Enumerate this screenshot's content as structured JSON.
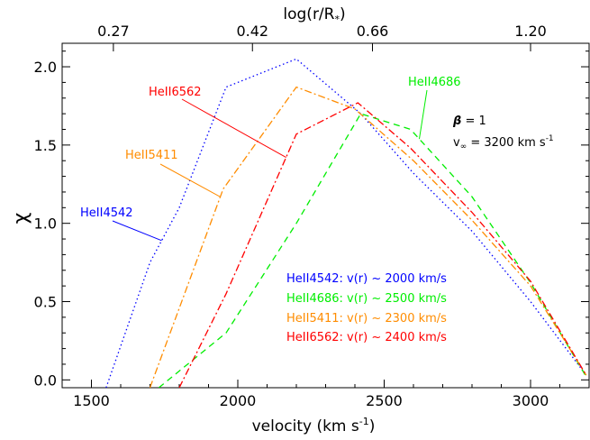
{
  "chart_data": {
    "type": "line",
    "title": "",
    "xlabel": "velocity (km s",
    "xlabel_sup": "-1",
    "xlabel_tail": ")",
    "ylabel": "χ",
    "top_axis_label": "log(r/R",
    "top_axis_label_sub": "*",
    "top_axis_label_tail": ")",
    "xlim": [
      1400,
      3200
    ],
    "ylim": [
      -0.05,
      2.15
    ],
    "x_ticks": [
      1500,
      2000,
      2500,
      3000
    ],
    "x_tick_labels": [
      "1500",
      "2000",
      "2500",
      "3000"
    ],
    "y_ticks": [
      0.0,
      0.5,
      1.0,
      1.5,
      2.0
    ],
    "y_tick_labels": [
      "0.0",
      "0.5",
      "1.0",
      "1.5",
      "2.0"
    ],
    "top_ticks": [
      {
        "velocity": 1575,
        "label": "0.27"
      },
      {
        "velocity": 2050,
        "label": "0.42"
      },
      {
        "velocity": 2460,
        "label": "0.66"
      },
      {
        "velocity": 3000,
        "label": "1.20"
      }
    ],
    "grid": false,
    "series": [
      {
        "name": "HeII4542",
        "color": "#0000ff",
        "dash": "dotted",
        "x": [
          1550,
          1700,
          1800,
          1960,
          2200,
          2420,
          2600,
          2800,
          3000,
          3190
        ],
        "y": [
          -0.05,
          0.75,
          1.1,
          1.87,
          2.05,
          1.7,
          1.32,
          0.95,
          0.5,
          0.03
        ]
      },
      {
        "name": "HeII4686",
        "color": "#00ee00",
        "dash": "dashed",
        "x": [
          1730,
          1960,
          2200,
          2420,
          2590,
          2800,
          3000,
          3190
        ],
        "y": [
          -0.05,
          0.3,
          1.0,
          1.7,
          1.6,
          1.17,
          0.62,
          0.02
        ]
      },
      {
        "name": "HeII5411",
        "color": "#ff8c00",
        "dash": "dashdot",
        "x": [
          1700,
          1950,
          2200,
          2400,
          2600,
          2800,
          3000,
          3190
        ],
        "y": [
          -0.05,
          1.22,
          1.87,
          1.73,
          1.4,
          1.02,
          0.6,
          0.03
        ]
      },
      {
        "name": "HeII6562",
        "color": "#ff0000",
        "dash": "dashdot",
        "x": [
          1800,
          1960,
          2200,
          2410,
          2590,
          2800,
          3000,
          3190
        ],
        "y": [
          -0.05,
          0.55,
          1.57,
          1.77,
          1.48,
          1.07,
          0.63,
          0.03
        ]
      }
    ],
    "series_labels": [
      {
        "text": "HeII6562",
        "color": "#ff0000"
      },
      {
        "text": "HeII5411",
        "color": "#ff8c00"
      },
      {
        "text": "HeII4542",
        "color": "#0000ff"
      },
      {
        "text": "HeII4686",
        "color": "#00ee00"
      }
    ],
    "legend_placement": "lower-center",
    "legend": [
      {
        "text": "HeII4542: v(r) ~ 2000 km/s",
        "color": "#0000ff"
      },
      {
        "text": "HeII4686: v(r) ~ 2500 km/s",
        "color": "#00ee00"
      },
      {
        "text": "HeII5411: v(r) ~ 2300 km/s",
        "color": "#ff8c00"
      },
      {
        "text": "HeII6562: v(r) ~ 2400 km/s",
        "color": "#ff0000"
      }
    ],
    "annotations": {
      "beta_symbol": "β",
      "beta_text": " = 1",
      "vinf_prefix": "v",
      "vinf_sub": "∞",
      "vinf_text": " = 3200 km s",
      "vinf_sup": "-1"
    }
  }
}
